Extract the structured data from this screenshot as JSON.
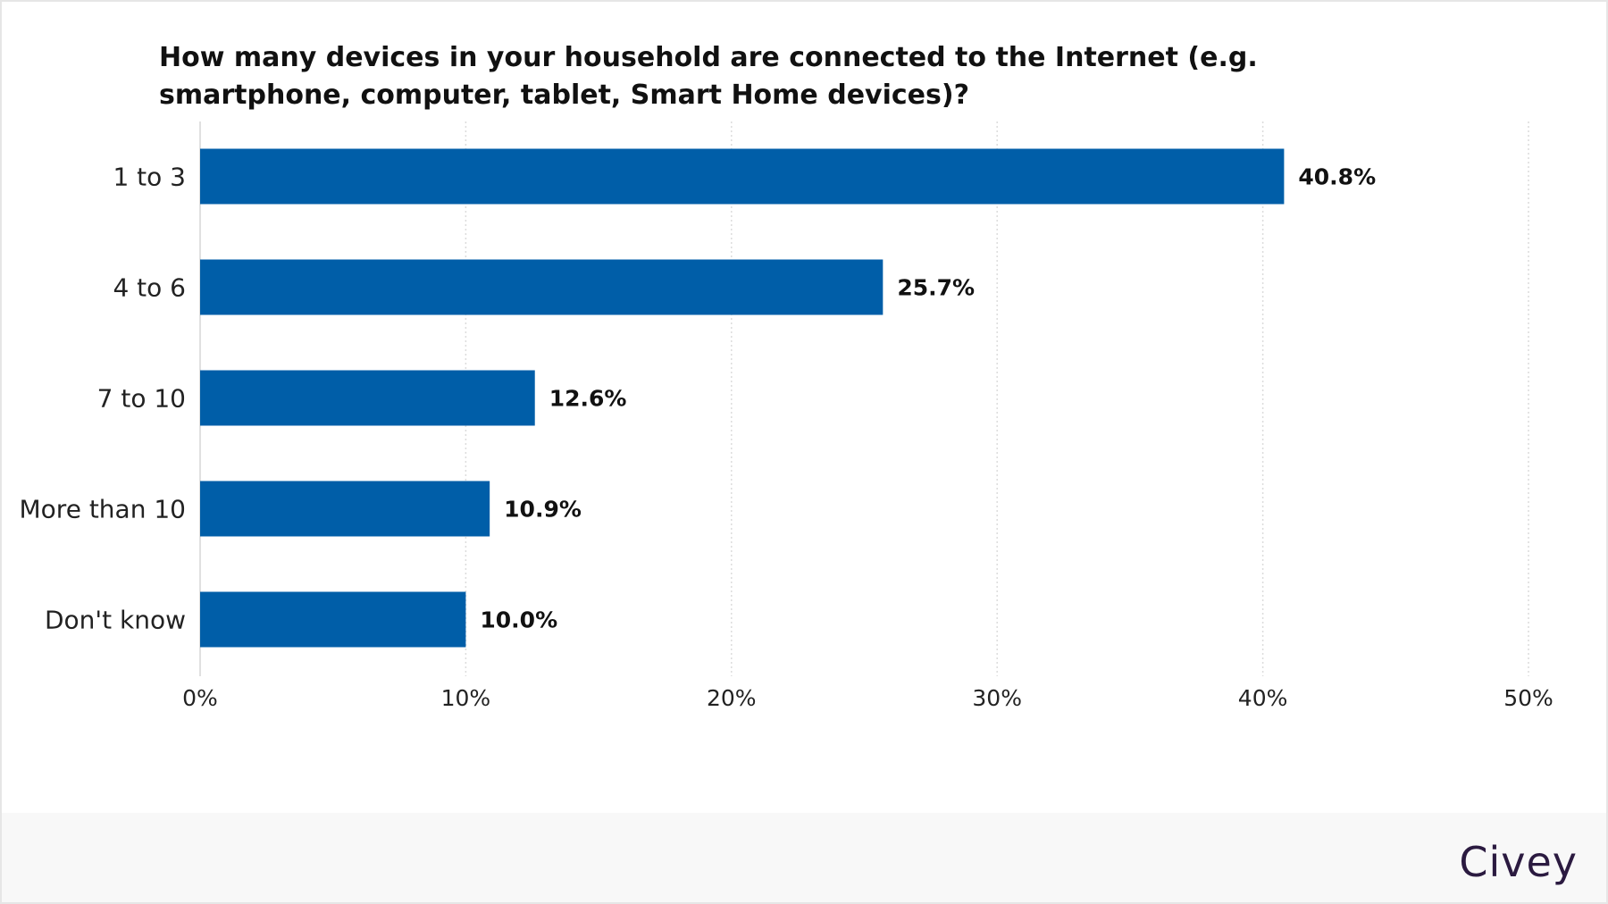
{
  "chart_data": {
    "type": "bar",
    "orientation": "horizontal",
    "title": "How many devices in your household are connected to the Internet (e.g. smartphone, computer, tablet, Smart Home devices)?",
    "categories": [
      "1 to 3",
      "4 to 6",
      "7 to 10",
      "More than 10",
      "Don't know"
    ],
    "values": [
      40.8,
      25.7,
      12.6,
      10.9,
      10.0
    ],
    "value_labels": [
      "40.8%",
      "25.7%",
      "12.6%",
      "10.9%",
      "10.0%"
    ],
    "xlabel": "",
    "ylabel": "",
    "xlim": [
      0,
      50
    ],
    "ticks": [
      0,
      10,
      20,
      30,
      40,
      50
    ],
    "tick_labels": [
      "0%",
      "10%",
      "20%",
      "30%",
      "40%",
      "50%"
    ],
    "grid": true,
    "bar_color": "#005ea8"
  },
  "brand": {
    "logo_text": "Civey",
    "color": "#2b1a40"
  }
}
